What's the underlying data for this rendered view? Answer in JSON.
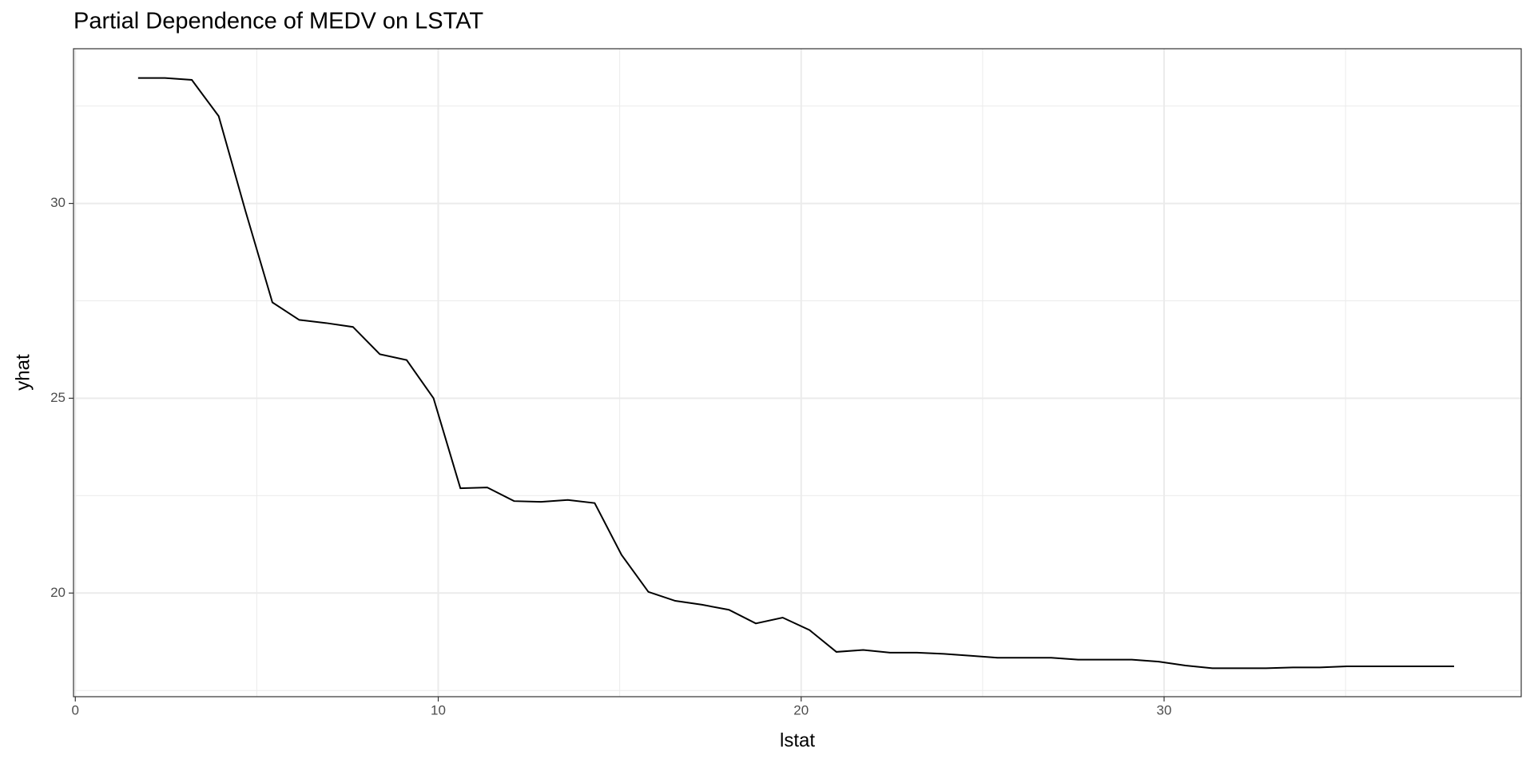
{
  "chart_data": {
    "type": "line",
    "title": "Partial Dependence of MEDV on LSTAT",
    "x_label": "lstat",
    "y_label": "yhat",
    "x": [
      1.73,
      2.47,
      3.21,
      3.95,
      4.69,
      5.43,
      6.17,
      6.91,
      7.65,
      8.39,
      9.13,
      9.87,
      10.61,
      11.35,
      12.09,
      12.83,
      13.57,
      14.31,
      15.05,
      15.79,
      16.53,
      17.27,
      18.01,
      18.75,
      19.49,
      20.23,
      20.97,
      21.71,
      22.45,
      23.19,
      23.93,
      24.67,
      25.41,
      26.15,
      26.89,
      27.63,
      28.37,
      29.11,
      29.85,
      30.59,
      31.33,
      32.07,
      32.81,
      33.55,
      34.29,
      35.03,
      35.77,
      36.51,
      37.25,
      37.99
    ],
    "series": [
      {
        "name": "yhat",
        "color": "#000000",
        "values": [
          33.22,
          33.22,
          33.17,
          32.24,
          29.8,
          27.46,
          27.01,
          26.93,
          26.83,
          26.13,
          25.98,
          25.0,
          22.69,
          22.71,
          22.36,
          22.34,
          22.39,
          22.31,
          20.98,
          20.03,
          19.8,
          19.7,
          19.57,
          19.22,
          19.37,
          19.05,
          18.49,
          18.54,
          18.47,
          18.47,
          18.44,
          18.39,
          18.34,
          18.34,
          18.34,
          18.29,
          18.29,
          18.29,
          18.24,
          18.14,
          18.07,
          18.07,
          18.07,
          18.09,
          18.09,
          18.12,
          18.12,
          18.12,
          18.12,
          18.12
        ]
      }
    ],
    "xlim": [
      -0.05,
      39.84
    ],
    "ylim": [
      17.34,
      33.97
    ],
    "xticks": [
      0,
      10,
      20,
      30
    ],
    "yticks": [
      20,
      25,
      30
    ],
    "grid": true,
    "minor_grid": true
  }
}
